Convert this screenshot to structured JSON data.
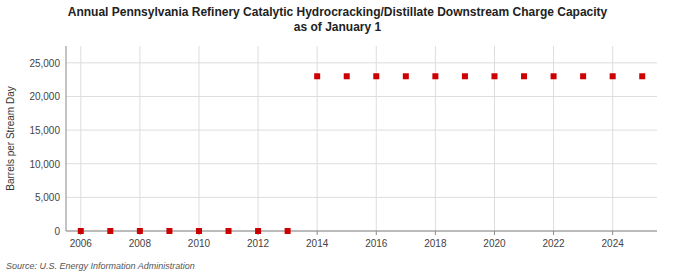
{
  "chart_data": {
    "type": "scatter",
    "title": "Annual Pennsylvania Refinery Catalytic Hydrocracking/Distillate Downstream Charge Capacity\nas of January 1",
    "ylabel": "Barrels per Stream Day",
    "source": "Source: U.S. Energy Information Administration",
    "x": [
      2006,
      2007,
      2008,
      2009,
      2010,
      2011,
      2012,
      2013,
      2014,
      2015,
      2016,
      2017,
      2018,
      2019,
      2020,
      2021,
      2022,
      2023,
      2024,
      2025
    ],
    "values": [
      0,
      0,
      0,
      0,
      0,
      0,
      0,
      0,
      23000,
      23000,
      23000,
      23000,
      23000,
      23000,
      23000,
      23000,
      23000,
      23000,
      23000,
      23000
    ],
    "color": "#cc0000",
    "marker": "square",
    "xlim": [
      2005.5,
      2025.5
    ],
    "xticks": [
      2006,
      2008,
      2010,
      2012,
      2014,
      2016,
      2018,
      2020,
      2022,
      2024
    ],
    "ylim": [
      0,
      27500
    ],
    "yticks": [
      0,
      {
        "value": 5000,
        "label": "5,000"
      },
      {
        "value": 10000,
        "label": "10,000"
      },
      {
        "value": 15000,
        "label": "15,000"
      },
      {
        "value": 20000,
        "label": "20,000"
      },
      {
        "value": 25000,
        "label": "25,000"
      }
    ],
    "grid": true
  }
}
